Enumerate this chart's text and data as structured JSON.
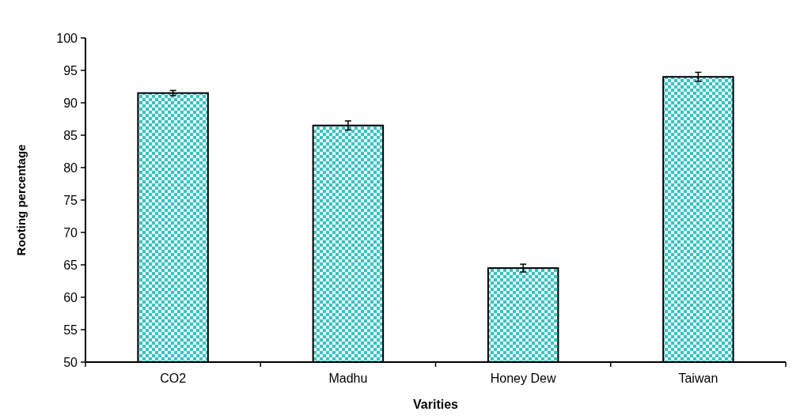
{
  "chart_data": {
    "type": "bar",
    "xlabel": "Varities",
    "ylabel": "Rooting percentage",
    "categories": [
      "CO2",
      "Madhu",
      "Honey Dew",
      "Taiwan"
    ],
    "values": [
      91.5,
      86.5,
      64.5,
      94.0
    ],
    "errors": [
      0.4,
      0.7,
      0.6,
      0.7
    ],
    "color": "#40bfbf",
    "ylim": [
      50,
      100
    ],
    "yticks": [
      50,
      55,
      60,
      65,
      70,
      75,
      80,
      85,
      90,
      95,
      100
    ],
    "grid": false
  }
}
